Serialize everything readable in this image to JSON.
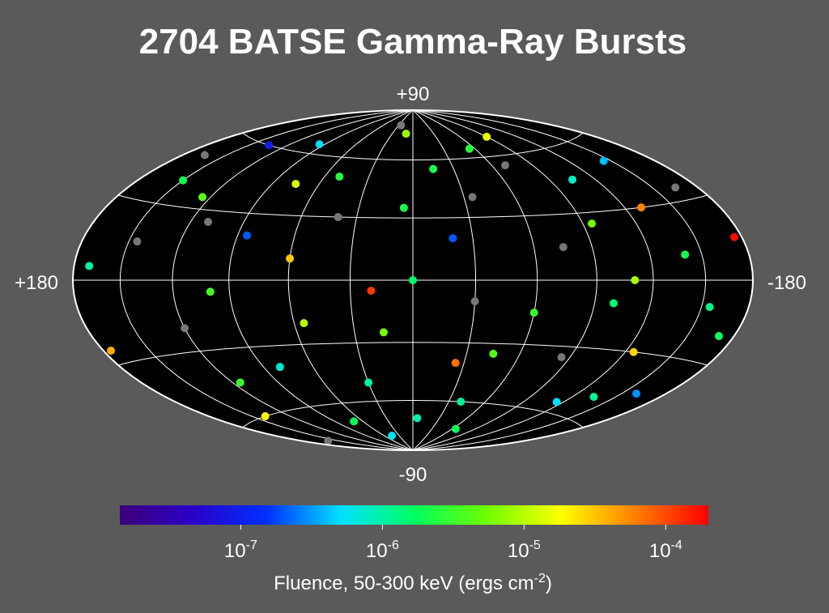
{
  "chart_data": {
    "type": "sky-map",
    "projection": "hammer-aitoff",
    "title": "2704 BATSE Gamma-Ray Bursts",
    "lat_labels": [
      "+90",
      "-90"
    ],
    "lon_labels": [
      "+180",
      "-180"
    ],
    "meridians": [
      -150,
      -120,
      -90,
      -60,
      -30,
      0,
      30,
      60,
      90,
      120,
      150
    ],
    "parallels": [
      -60,
      -30,
      0,
      30,
      60
    ],
    "lon": [
      150,
      120,
      95,
      60,
      30,
      10,
      -20,
      -45,
      -70,
      -100,
      -130,
      -160,
      170,
      140,
      110,
      80,
      50,
      20,
      -5,
      -35,
      -60,
      -90,
      -115,
      -140,
      -165,
      175,
      135,
      100,
      70,
      40,
      15,
      -15,
      -40,
      -75,
      -105,
      -125,
      -155,
      160,
      125,
      85,
      55,
      25,
      0,
      -25,
      -55,
      -85,
      -110,
      -145,
      -170,
      145,
      115,
      75,
      45,
      5,
      -30,
      -65,
      -95,
      -135,
      -175,
      165
    ],
    "lat": [
      40,
      -20,
      65,
      10,
      -50,
      75,
      20,
      -35,
      55,
      -10,
      30,
      -45,
      5,
      -60,
      25,
      -40,
      50,
      -5,
      -70,
      40,
      -15,
      70,
      -55,
      10,
      35,
      -25,
      60,
      -5,
      -70,
      30,
      -25,
      55,
      -60,
      15,
      45,
      -30,
      -10,
      -75,
      35,
      20,
      -20,
      80,
      0,
      -40,
      65,
      -35,
      0,
      50,
      -20,
      15,
      -45,
      45,
      -80,
      35,
      -10,
      -75,
      25,
      -50,
      15,
      50
    ],
    "fluence": [
      2e-06,
      null,
      5e-07,
      3e-05,
      1e-06,
      8e-06,
      2e-07,
      4e-06,
      null,
      1.5e-06,
      6e-05,
      3e-07,
      1e-06,
      2e-05,
      null,
      7e-07,
      2.5e-06,
      0.00012,
      9e-07,
      null,
      3e-06,
      1.5e-05,
      5e-07,
      2e-06,
      null,
      4e-05,
      1e-07,
      3.5e-06,
      1.8e-06,
      null,
      6e-06,
      2.2e-06,
      1.1e-06,
      null,
      8e-07,
      2.8e-05,
      1.3e-06,
      null,
      4.5e-06,
      2e-07,
      1e-05,
      null,
      1.6e-06,
      7e-05,
      2.6e-06,
      null,
      9e-06,
      4e-07,
      1.9e-06,
      null,
      3e-06,
      1.4e-05,
      6e-07,
      2.1e-06,
      null,
      1.7e-06,
      5.5e-06,
      1.1e-06,
      0.00018,
      null
    ],
    "missing_color": "#777777",
    "colormap": [
      "#3c0078",
      "#2a00c8",
      "#0030ff",
      "#00e0ff",
      "#00ff60",
      "#70ff00",
      "#ffff00",
      "#ff8000",
      "#ff0000"
    ],
    "color_scale": "log",
    "clim": [
      1.4e-08,
      0.0002
    ],
    "cticks": [
      {
        "value": 1e-07,
        "label": "10",
        "sup": "-7"
      },
      {
        "value": 1e-06,
        "label": "10",
        "sup": "-6"
      },
      {
        "value": 1e-05,
        "label": "10",
        "sup": "-5"
      },
      {
        "value": 0.0001,
        "label": "10",
        "sup": "-4"
      }
    ],
    "colorbar_label": [
      "Fluence, 50-300 keV (ergs cm",
      "-2",
      ")"
    ]
  }
}
